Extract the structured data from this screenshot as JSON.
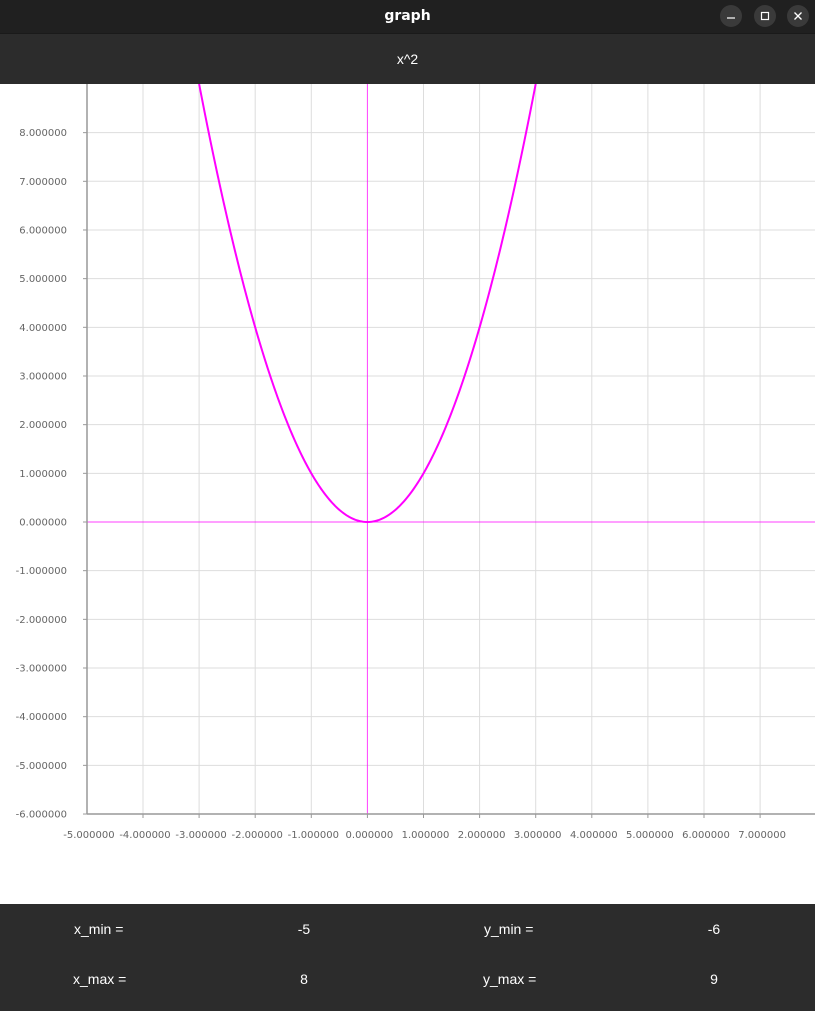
{
  "window": {
    "title": "graph"
  },
  "titlebar_icons": {
    "minimize": "minimize-icon",
    "maximize": "maximize-icon",
    "close": "close-icon"
  },
  "header": {
    "function": "x^2"
  },
  "colors": {
    "curve": "#ff00ff",
    "axes": "#ff00ff",
    "grid": "#dddddd",
    "frame": "#999999"
  },
  "chart_data": {
    "type": "line",
    "title": "",
    "xlabel": "",
    "ylabel": "",
    "xlim": [
      -5,
      8
    ],
    "ylim": [
      -6,
      9
    ],
    "grid": true,
    "x_ticks": [
      "-5.000000",
      "-4.000000",
      "-3.000000",
      "-2.000000",
      "-1.000000",
      "0.000000",
      "1.000000",
      "2.000000",
      "3.000000",
      "4.000000",
      "5.000000",
      "6.000000",
      "7.000000"
    ],
    "y_ticks": [
      "8.000000",
      "7.000000",
      "6.000000",
      "5.000000",
      "4.000000",
      "3.000000",
      "2.000000",
      "1.000000",
      "0.000000",
      "-1.000000",
      "-2.000000",
      "-3.000000",
      "-4.000000",
      "-5.000000",
      "-6.000000"
    ],
    "series": [
      {
        "x": [
          -3,
          -2.75,
          -2.5,
          -2.25,
          -2,
          -1.75,
          -1.5,
          -1.25,
          -1,
          -0.75,
          -0.5,
          -0.25,
          0,
          0.25,
          0.5,
          0.75,
          1,
          1.25,
          1.5,
          1.75,
          2,
          2.25,
          2.5,
          2.75,
          3
        ],
        "y": [
          9,
          7.5625,
          6.25,
          5.0625,
          4,
          3.0625,
          2.25,
          1.5625,
          1,
          0.5625,
          0.25,
          0.0625,
          0,
          0.0625,
          0.25,
          0.5625,
          1,
          1.5625,
          2.25,
          3.0625,
          4,
          5.0625,
          6.25,
          7.5625,
          9
        ]
      }
    ]
  },
  "range_controls": {
    "x_min": {
      "label": "x_min =",
      "value": "-5"
    },
    "x_max": {
      "label": "x_max =",
      "value": "8"
    },
    "y_min": {
      "label": "y_min =",
      "value": "-6"
    },
    "y_max": {
      "label": "y_max =",
      "value": "9"
    }
  }
}
